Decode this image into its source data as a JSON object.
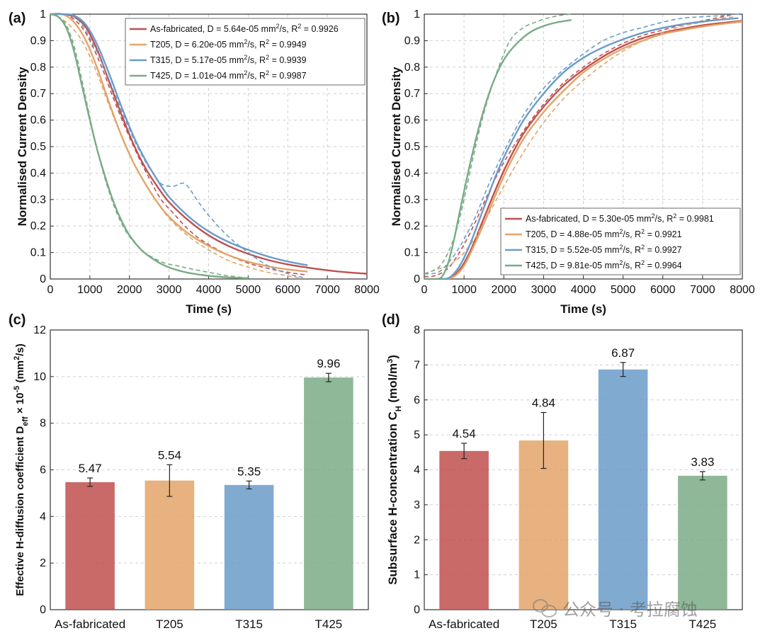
{
  "colors": {
    "as_fabricated": "#c0504d",
    "t205": "#e3a46a",
    "t315": "#6b9bc9",
    "t425": "#7aab86"
  },
  "watermark": {
    "text": "公众号 · 考拉腐蚀",
    "icon": "wechat-icon"
  },
  "panels": {
    "a": {
      "label": "(a)",
      "xlabel": "Time (s)",
      "ylabel": "Normalised Current Density",
      "xlim": [
        0,
        8000
      ],
      "ylim": [
        0,
        1
      ],
      "xticks": [
        "0",
        "1000",
        "2000",
        "3000",
        "4000",
        "5000",
        "6000",
        "7000",
        "8000"
      ],
      "yticks": [
        "0",
        "0.1",
        "0.2",
        "0.3",
        "0.4",
        "0.5",
        "0.6",
        "0.7",
        "0.8",
        "0.9",
        "1"
      ]
    },
    "b": {
      "label": "(b)",
      "xlabel": "Time (s)",
      "ylabel": "Normalised Current Density",
      "xlim": [
        0,
        8000
      ],
      "ylim": [
        0,
        1
      ],
      "xticks": [
        "0",
        "1000",
        "2000",
        "3000",
        "4000",
        "5000",
        "6000",
        "7000",
        "8000"
      ],
      "yticks": [
        "0",
        "0.1",
        "0.2",
        "0.3",
        "0.4",
        "0.5",
        "0.6",
        "0.7",
        "0.8",
        "0.9",
        "1"
      ]
    },
    "c": {
      "label": "(c)",
      "ylabel_main": "Effective H-diffusion coefficient D",
      "ylabel_sub": "eff",
      "ylabel_tail": " × 10",
      "ylabel_exp": "-5",
      "ylabel_unit": " (mm",
      "ylabel_unit_exp": "2",
      "ylabel_unit_tail": "/s)",
      "ylim": [
        0,
        12
      ],
      "yticks": [
        "0",
        "2",
        "4",
        "6",
        "8",
        "10",
        "12"
      ]
    },
    "d": {
      "label": "(d)",
      "ylabel_main": "Subsurface H-concentration C",
      "ylabel_sub": "H",
      "ylabel_unit": " (mol/m",
      "ylabel_unit_exp": "3",
      "ylabel_unit_tail": ")",
      "ylim": [
        0,
        8
      ],
      "yticks": [
        "0",
        "1",
        "2",
        "3",
        "4",
        "5",
        "6",
        "7",
        "8"
      ]
    }
  },
  "chart_data": [
    {
      "panel": "a",
      "type": "line",
      "title": "",
      "xlabel": "Time (s)",
      "ylabel": "Normalised Current Density",
      "xlim": [
        0,
        8000
      ],
      "ylim": [
        0,
        1
      ],
      "legend": "top-right",
      "series": [
        {
          "key": "as_fabricated",
          "name": "As-fabricated, D = 5.64e-05 mm",
          "sup": "2",
          "mid": "/s, R",
          "sup2": "2",
          "tail": " = 0.9926",
          "fit_x": [
            0,
            300,
            600,
            900,
            1200,
            1500,
            1800,
            2100,
            2400,
            2700,
            3000,
            3500,
            4000,
            4500,
            5000,
            5500,
            6000,
            6500,
            7000,
            7500,
            8000
          ],
          "fit_y": [
            1,
            1,
            0.99,
            0.95,
            0.86,
            0.74,
            0.62,
            0.51,
            0.42,
            0.35,
            0.29,
            0.22,
            0.165,
            0.125,
            0.095,
            0.072,
            0.055,
            0.043,
            0.033,
            0.025,
            0.02
          ],
          "exp_x": [
            0,
            200,
            400,
            600,
            800,
            1000,
            1300,
            1600,
            1900,
            2200,
            2500,
            2800,
            3100,
            3400,
            3700,
            4000,
            4500,
            5000,
            5500,
            6000,
            6500
          ],
          "exp_y": [
            1,
            1,
            1,
            0.98,
            0.95,
            0.9,
            0.8,
            0.68,
            0.57,
            0.47,
            0.38,
            0.3,
            0.25,
            0.2,
            0.16,
            0.13,
            0.09,
            0.06,
            0.04,
            0.025,
            0.015
          ]
        },
        {
          "key": "t205",
          "name": "T205, D = 6.20e-05 mm",
          "sup": "2",
          "mid": "/s, R",
          "sup2": "2",
          "tail": " = 0.9949",
          "fit_x": [
            0,
            300,
            600,
            900,
            1200,
            1500,
            1800,
            2100,
            2400,
            2700,
            3000,
            3500,
            4000,
            4500,
            5000,
            5500,
            6000,
            6500
          ],
          "fit_y": [
            1,
            1,
            0.97,
            0.9,
            0.79,
            0.66,
            0.54,
            0.44,
            0.36,
            0.29,
            0.235,
            0.17,
            0.125,
            0.09,
            0.065,
            0.048,
            0.036,
            0.028
          ],
          "exp_x": [
            0,
            200,
            400,
            600,
            800,
            1000,
            1200,
            1500,
            1800,
            2100,
            2400,
            2700,
            3000,
            3500,
            4000,
            4500,
            5000,
            5500,
            6000,
            6300
          ],
          "exp_y": [
            1,
            0.99,
            0.97,
            0.94,
            0.9,
            0.84,
            0.77,
            0.65,
            0.54,
            0.44,
            0.36,
            0.29,
            0.23,
            0.16,
            0.11,
            0.07,
            0.045,
            0.025,
            0.012,
            0.005
          ]
        },
        {
          "key": "t315",
          "name": "T315, D = 5.17e-05 mm",
          "sup": "2",
          "mid": "/s, R",
          "sup2": "2",
          "tail": " = 0.9939",
          "fit_x": [
            0,
            300,
            600,
            900,
            1200,
            1500,
            1800,
            2100,
            2400,
            2700,
            3000,
            3500,
            4000,
            4500,
            5000,
            5500,
            6000,
            6500
          ],
          "fit_y": [
            1,
            1,
            0.995,
            0.96,
            0.88,
            0.77,
            0.65,
            0.54,
            0.45,
            0.375,
            0.31,
            0.235,
            0.18,
            0.14,
            0.11,
            0.085,
            0.066,
            0.052
          ],
          "exp_x": [
            0,
            200,
            400,
            600,
            800,
            1000,
            1300,
            1600,
            1900,
            2200,
            2500,
            2800,
            3100,
            3400,
            3700,
            4000,
            4500,
            5000,
            5500,
            6000,
            6400
          ],
          "exp_y": [
            1,
            1,
            1,
            0.99,
            0.96,
            0.91,
            0.82,
            0.71,
            0.6,
            0.5,
            0.42,
            0.36,
            0.35,
            0.36,
            0.3,
            0.24,
            0.16,
            0.1,
            0.05,
            0.02,
            0.005
          ]
        },
        {
          "key": "t425",
          "name": "T425, D = 1.01e-04 mm",
          "sup": "2",
          "mid": "/s, R",
          "sup2": "2",
          "tail": " = 0.9987",
          "fit_x": [
            0,
            200,
            400,
            600,
            800,
            1000,
            1200,
            1400,
            1600,
            1800,
            2000,
            2300,
            2600,
            2900,
            3200,
            3500,
            4000,
            4500,
            5000
          ],
          "fit_y": [
            1,
            0.99,
            0.95,
            0.86,
            0.73,
            0.6,
            0.48,
            0.38,
            0.29,
            0.22,
            0.165,
            0.11,
            0.075,
            0.05,
            0.034,
            0.023,
            0.012,
            0.006,
            0.003
          ],
          "exp_x": [
            0,
            200,
            400,
            600,
            800,
            1000,
            1200,
            1400,
            1600,
            1800,
            2000,
            2300,
            2600,
            2900,
            3200,
            3500,
            4000,
            4500,
            5100
          ],
          "exp_y": [
            1,
            0.99,
            0.96,
            0.88,
            0.75,
            0.61,
            0.48,
            0.37,
            0.28,
            0.21,
            0.16,
            0.11,
            0.08,
            0.06,
            0.05,
            0.04,
            0.025,
            0.012,
            0.002
          ]
        }
      ]
    },
    {
      "panel": "b",
      "type": "line",
      "title": "",
      "xlabel": "Time (s)",
      "ylabel": "Normalised Current Density",
      "xlim": [
        0,
        8000
      ],
      "ylim": [
        0,
        1
      ],
      "legend": "bottom-right",
      "series": [
        {
          "key": "as_fabricated",
          "name": "As-fabricated, D = 5.30e-05 mm",
          "sup": "2",
          "mid": "/s, R",
          "sup2": "2",
          "tail": " = 0.9981",
          "fit_x": [
            0,
            400,
            600,
            800,
            1000,
            1200,
            1500,
            1800,
            2100,
            2500,
            3000,
            3500,
            4000,
            4500,
            5000,
            5500,
            6000,
            6500,
            7000,
            7500,
            8000
          ],
          "fit_y": [
            0,
            0,
            0.002,
            0.02,
            0.06,
            0.12,
            0.23,
            0.34,
            0.44,
            0.55,
            0.65,
            0.73,
            0.79,
            0.84,
            0.88,
            0.91,
            0.93,
            0.945,
            0.958,
            0.967,
            0.975
          ],
          "exp_x": [
            0,
            200,
            400,
            600,
            800,
            1000,
            1300,
            1600,
            2000,
            2500,
            3000,
            3500,
            4000,
            4500,
            5000,
            5500,
            6000,
            6500,
            7000,
            7500,
            7800
          ],
          "exp_y": [
            0.01,
            0.01,
            0.02,
            0.04,
            0.08,
            0.13,
            0.22,
            0.32,
            0.44,
            0.56,
            0.66,
            0.74,
            0.8,
            0.85,
            0.89,
            0.92,
            0.94,
            0.96,
            0.975,
            0.99,
            1
          ]
        },
        {
          "key": "t205",
          "name": "T205, D = 4.88e-05 mm",
          "sup": "2",
          "mid": "/s, R",
          "sup2": "2",
          "tail": " = 0.9921",
          "fit_x": [
            0,
            400,
            600,
            800,
            1000,
            1200,
            1500,
            1800,
            2100,
            2500,
            3000,
            3500,
            4000,
            4500,
            5000,
            5500,
            6000,
            6500,
            7000,
            7500,
            8000
          ],
          "fit_y": [
            0,
            0,
            0.001,
            0.015,
            0.05,
            0.11,
            0.21,
            0.32,
            0.42,
            0.53,
            0.63,
            0.71,
            0.78,
            0.83,
            0.87,
            0.9,
            0.925,
            0.94,
            0.953,
            0.963,
            0.972
          ],
          "exp_x": [
            0,
            200,
            400,
            600,
            800,
            1000,
            1300,
            1600,
            2000,
            2500,
            3000,
            3500,
            4000,
            4500,
            5000,
            5500,
            6000,
            6500,
            7000,
            7500,
            7800
          ],
          "exp_y": [
            0.02,
            0.03,
            0.04,
            0.05,
            0.07,
            0.1,
            0.16,
            0.24,
            0.35,
            0.48,
            0.59,
            0.68,
            0.75,
            0.81,
            0.86,
            0.9,
            0.93,
            0.955,
            0.97,
            0.985,
            0.99
          ]
        },
        {
          "key": "t315",
          "name": "T315, D = 5.52e-05 mm",
          "sup": "2",
          "mid": "/s, R",
          "sup2": "2",
          "tail": " = 0.9927",
          "fit_x": [
            0,
            400,
            600,
            800,
            1000,
            1200,
            1500,
            1800,
            2100,
            2500,
            3000,
            3500,
            4000,
            4500,
            5000,
            5500,
            6000,
            6500,
            7000,
            7500,
            7900
          ],
          "fit_y": [
            0,
            0,
            0.003,
            0.03,
            0.08,
            0.15,
            0.27,
            0.39,
            0.49,
            0.6,
            0.7,
            0.78,
            0.835,
            0.875,
            0.905,
            0.93,
            0.948,
            0.962,
            0.972,
            0.98,
            0.985
          ],
          "exp_x": [
            0,
            200,
            400,
            600,
            800,
            1000,
            1300,
            1600,
            2000,
            2500,
            3000,
            3500,
            4000,
            4500,
            5000,
            5500,
            6000,
            6500,
            7000,
            7500,
            7900
          ],
          "exp_y": [
            0.02,
            0.02,
            0.03,
            0.06,
            0.1,
            0.15,
            0.24,
            0.35,
            0.48,
            0.62,
            0.72,
            0.79,
            0.85,
            0.9,
            0.93,
            0.95,
            0.97,
            0.985,
            0.99,
            0.995,
            1
          ]
        },
        {
          "key": "t425",
          "name": "T425, D = 9.81e-05 mm",
          "sup": "2",
          "mid": "/s, R",
          "sup2": "2",
          "tail": " = 0.9964",
          "fit_x": [
            0,
            300,
            450,
            600,
            750,
            900,
            1100,
            1300,
            1500,
            1700,
            1900,
            2100,
            2400,
            2700,
            3000,
            3300,
            3700
          ],
          "fit_y": [
            0,
            0,
            0.01,
            0.06,
            0.15,
            0.26,
            0.4,
            0.53,
            0.64,
            0.73,
            0.8,
            0.85,
            0.9,
            0.935,
            0.955,
            0.968,
            0.978
          ],
          "exp_x": [
            0,
            200,
            400,
            600,
            800,
            1000,
            1200,
            1400,
            1600,
            1800,
            2000,
            2200,
            2500,
            2800,
            3100,
            3400,
            3700
          ],
          "exp_y": [
            0.02,
            0.03,
            0.05,
            0.1,
            0.18,
            0.3,
            0.44,
            0.57,
            0.68,
            0.77,
            0.85,
            0.91,
            0.95,
            0.97,
            0.985,
            0.995,
            1
          ]
        }
      ]
    },
    {
      "panel": "c",
      "type": "bar",
      "title": "",
      "xlabel": "",
      "ylabel": "Effective H-diffusion coefficient Deff × 10-5 (mm2/s)",
      "ylim": [
        0,
        12
      ],
      "categories": [
        "As-fabricated",
        "T205",
        "T315",
        "T425"
      ],
      "values": [
        5.47,
        5.54,
        5.35,
        9.96
      ],
      "value_labels": [
        "5.47",
        "5.54",
        "5.35",
        "9.96"
      ],
      "errors": [
        0.18,
        0.68,
        0.17,
        0.18
      ]
    },
    {
      "panel": "d",
      "type": "bar",
      "title": "",
      "xlabel": "",
      "ylabel": "Subsurface H-concentration CH (mol/m3)",
      "ylim": [
        0,
        8
      ],
      "categories": [
        "As-fabricated",
        "T205",
        "T315",
        "T425"
      ],
      "values": [
        4.54,
        4.84,
        6.87,
        3.83
      ],
      "value_labels": [
        "4.54",
        "4.84",
        "6.87",
        "3.83"
      ],
      "errors": [
        0.22,
        0.8,
        0.2,
        0.12
      ]
    }
  ]
}
